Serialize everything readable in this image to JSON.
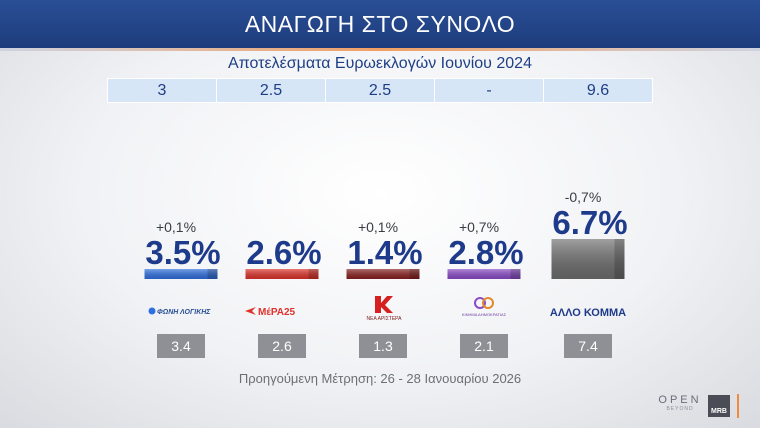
{
  "header": {
    "title": "ΑΝΑΓΩΓΗ ΣΤΟ ΣΥΝΟΛΟ"
  },
  "subtitle": "Αποτελέσματα Ευρωεκλογών Ιουνίου 2024",
  "euro_results": [
    "3",
    "2.5",
    "2.5",
    "-",
    "9.6"
  ],
  "footer_note": "Προηγούμενη Μέτρηση: 26 - 28 Ιανουαρίου 2026",
  "logos": {
    "open": "OPEN",
    "open_sub": "BEYOND",
    "mrb": "MRB"
  },
  "chart_data": {
    "type": "bar",
    "categories": [
      "ΦΩΝΗ ΛΟΓΙΚΗΣ",
      "ΜέΡΑ25",
      "ΝΕΑ ΑΡΙΣΤΕΡΑ",
      "ΚΙΝΗΜΑ ΔΗΜΟΚΡΑΤΙΑΣ",
      "ΑΛΛΟ ΚΟΜΜΑ"
    ],
    "values": [
      3.5,
      2.6,
      1.4,
      2.8,
      6.7
    ],
    "value_labels": [
      "3.5%",
      "2.6%",
      "1.4%",
      "2.8%",
      "6.7%"
    ],
    "changes": [
      "+0,1%",
      "",
      "+0,1%",
      "+0,7%",
      "-0,7%"
    ],
    "previous": [
      "3.4",
      "2.6",
      "1.3",
      "2.1",
      "7.4"
    ],
    "colors": [
      "#2f6fe0",
      "#e0322a",
      "#8a1f1f",
      "#8a4bc8",
      "#6e6e6e"
    ],
    "ylim": [
      0,
      7
    ]
  }
}
